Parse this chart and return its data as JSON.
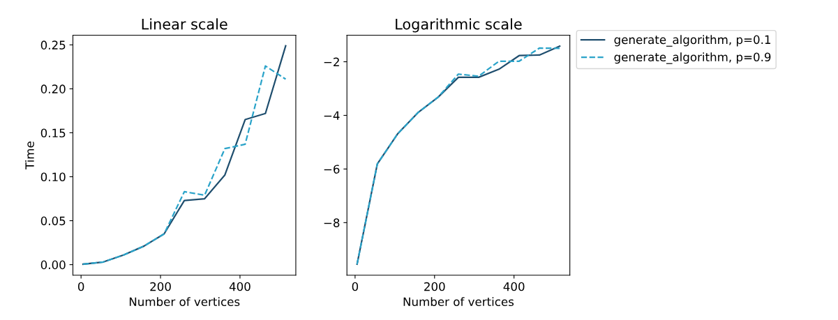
{
  "chart_data": [
    {
      "type": "line",
      "title": "Linear scale",
      "xlabel": "Number of vertices",
      "ylabel": "Time",
      "x": [
        5,
        56,
        107,
        158,
        209,
        260,
        311,
        362,
        413,
        464,
        515
      ],
      "xlim": [
        -20.5,
        540.5
      ],
      "xticks": [
        0,
        200,
        400
      ],
      "ylim": [
        -0.012,
        0.261
      ],
      "yticks": [
        {
          "value": 0,
          "label": "0.00"
        },
        {
          "value": 0.05,
          "label": "0.05"
        },
        {
          "value": 0.1,
          "label": "0.10"
        },
        {
          "value": 0.15,
          "label": "0.15"
        },
        {
          "value": 0.2,
          "label": "0.20"
        },
        {
          "value": 0.25,
          "label": "0.25"
        }
      ],
      "grid": false,
      "legend": false,
      "series": [
        {
          "color": "#1f4e6e",
          "line_style": "solid",
          "values": [
            0.0005,
            0.003,
            0.011,
            0.021,
            0.035,
            0.073,
            0.075,
            0.102,
            0.165,
            0.172,
            0.249
          ]
        },
        {
          "color": "#2aa3c9",
          "line_style": "dashed",
          "values": [
            0.0005,
            0.003,
            0.011,
            0.021,
            0.035,
            0.083,
            0.079,
            0.132,
            0.137,
            0.226,
            0.211
          ]
        }
      ]
    },
    {
      "type": "line",
      "title": "Logarithmic scale",
      "xlabel": "Number of vertices",
      "x": [
        5,
        56,
        107,
        158,
        209,
        260,
        311,
        362,
        413,
        464,
        515
      ],
      "xlim": [
        -20.5,
        540.5
      ],
      "xticks": [
        0,
        200,
        400
      ],
      "ylim": [
        -9.96,
        -1.01
      ],
      "yticks": [
        {
          "value": -8,
          "label": "−8"
        },
        {
          "value": -6,
          "label": "−6"
        },
        {
          "value": -4,
          "label": "−4"
        },
        {
          "value": -2,
          "label": "−2"
        }
      ],
      "grid": false,
      "legend": "right",
      "series": [
        {
          "name": "generate_algorithm, p=0.1",
          "color": "#1f4e6e",
          "line_style": "solid",
          "values": [
            -9.55,
            -5.81,
            -4.69,
            -3.9,
            -3.32,
            -2.58,
            -2.58,
            -2.28,
            -1.77,
            -1.75,
            -1.42
          ]
        },
        {
          "name": "generate_algorithm, p=0.9",
          "color": "#2aa3c9",
          "line_style": "dashed",
          "values": [
            -9.55,
            -5.81,
            -4.69,
            -3.9,
            -3.32,
            -2.46,
            -2.54,
            -1.98,
            -1.98,
            -1.49,
            -1.5
          ]
        }
      ]
    }
  ]
}
